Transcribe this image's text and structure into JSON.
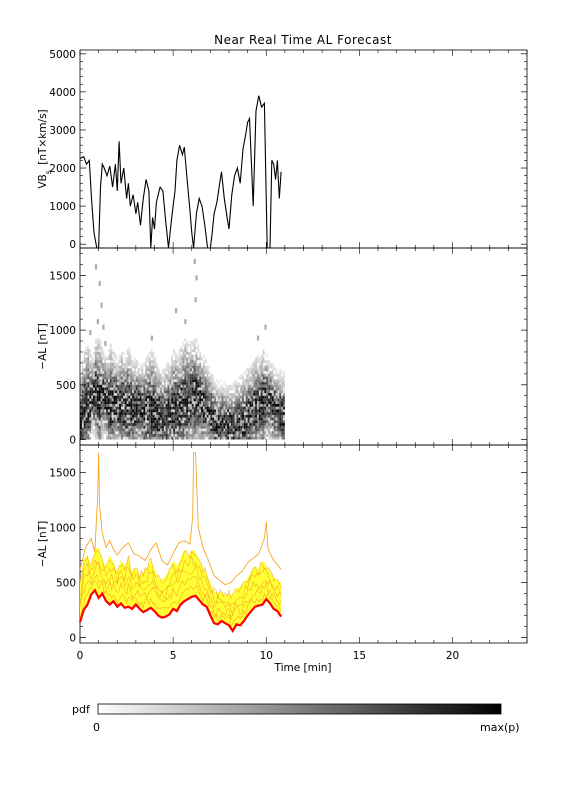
{
  "title": "Near Real Time AL Forecast",
  "colorbar": {
    "label": "pdf",
    "min_label": "0",
    "max_label": "max(p)",
    "colors": [
      "#ffffff",
      "#000000"
    ]
  },
  "colors": {
    "vbs_line": "#000000",
    "median_line": "#ff0000",
    "band_fill": "#ffff33",
    "envelope_lines": "#f5a623",
    "pdf_cells": "#000000"
  },
  "chart_data": [
    {
      "type": "line",
      "panel": "vbs",
      "ylabel": "VB_s [nT×km/s]",
      "ylim": [
        -100,
        5100
      ],
      "xlim": [
        0,
        24
      ],
      "yticks": [
        0,
        1000,
        2000,
        3000,
        4000,
        5000
      ],
      "series": [
        {
          "x": [
            0,
            0.2,
            0.35,
            0.5,
            0.62,
            0.75,
            0.9,
            1.0,
            1.1,
            1.2,
            1.3,
            1.45,
            1.6,
            1.75,
            1.9,
            2.0,
            2.1,
            2.2,
            2.35,
            2.5,
            2.6,
            2.7,
            2.85,
            3.0,
            3.1,
            3.25,
            3.4,
            3.55,
            3.7,
            3.8,
            3.9,
            4.0,
            4.1,
            4.2,
            4.3,
            4.45,
            4.6,
            4.75,
            4.9,
            5.0,
            5.1,
            5.2,
            5.35,
            5.5,
            5.6,
            5.75,
            5.9,
            6.0,
            6.1,
            6.25,
            6.4,
            6.55,
            6.7,
            6.85,
            7.0,
            7.1,
            7.2,
            7.35,
            7.5,
            7.6,
            7.75,
            7.9,
            8.0,
            8.15,
            8.3,
            8.45,
            8.6,
            8.75,
            8.9,
            9.0,
            9.1,
            9.2,
            9.3,
            9.45,
            9.6,
            9.75,
            9.9,
            10.05,
            10.2,
            10.3,
            10.4,
            10.5,
            10.6,
            10.7,
            10.8
          ],
          "values": [
            2250,
            2300,
            2100,
            2200,
            1200,
            300,
            -100,
            -100,
            1500,
            2100,
            2000,
            1800,
            2050,
            1500,
            2100,
            1400,
            2700,
            1600,
            2000,
            1200,
            1600,
            1000,
            1300,
            800,
            1100,
            500,
            1200,
            1700,
            1400,
            -100,
            700,
            400,
            1100,
            1300,
            1500,
            1400,
            600,
            -100,
            600,
            1000,
            1400,
            2200,
            2600,
            2350,
            2550,
            1700,
            900,
            300,
            -100,
            800,
            1200,
            1000,
            500,
            -100,
            -100,
            300,
            800,
            1100,
            1600,
            1900,
            1200,
            700,
            400,
            1300,
            1800,
            2000,
            1600,
            2500,
            2900,
            3200,
            3300,
            2200,
            1000,
            3500,
            3900,
            3600,
            3700,
            -100,
            -100,
            2200,
            2100,
            1700,
            2200,
            1200,
            1900
          ]
        }
      ]
    },
    {
      "type": "heatmap",
      "panel": "pdf",
      "ylabel": "−AL [nT]",
      "ylim": [
        -50,
        1750
      ],
      "xlim": [
        0,
        24
      ],
      "yticks": [
        0,
        500,
        1000,
        1500
      ],
      "data_extent_x": [
        0,
        10.9
      ],
      "outliers": [
        {
          "x": 0.8,
          "y": 1600
        },
        {
          "x": 1.0,
          "y": 1450
        },
        {
          "x": 1.1,
          "y": 1250
        },
        {
          "x": 1.2,
          "y": 1050
        },
        {
          "x": 0.9,
          "y": 1100
        },
        {
          "x": 1.3,
          "y": 900
        },
        {
          "x": 6.1,
          "y": 1650
        },
        {
          "x": 6.2,
          "y": 1500
        },
        {
          "x": 6.15,
          "y": 1300
        },
        {
          "x": 5.1,
          "y": 1200
        },
        {
          "x": 5.6,
          "y": 1100
        },
        {
          "x": 9.9,
          "y": 1050
        },
        {
          "x": 0.5,
          "y": 1000
        },
        {
          "x": 3.8,
          "y": 950
        },
        {
          "x": 9.5,
          "y": 950
        }
      ]
    },
    {
      "type": "line",
      "panel": "forecast",
      "ylabel": "−AL [nT]",
      "xlabel": "Time [min]",
      "ylim": [
        -50,
        1750
      ],
      "xlim": [
        0,
        24
      ],
      "yticks": [
        0,
        500,
        1000,
        1500
      ],
      "xticks": [
        0,
        5,
        10,
        15,
        20
      ],
      "series": [
        {
          "role": "median",
          "x": [
            0,
            0.2,
            0.4,
            0.6,
            0.8,
            1.0,
            1.2,
            1.4,
            1.6,
            1.8,
            2.0,
            2.2,
            2.4,
            2.6,
            2.8,
            3.0,
            3.2,
            3.4,
            3.6,
            3.8,
            4.0,
            4.2,
            4.4,
            4.6,
            4.8,
            5.0,
            5.2,
            5.4,
            5.6,
            5.8,
            6.0,
            6.2,
            6.4,
            6.6,
            6.8,
            7.0,
            7.2,
            7.4,
            7.6,
            7.8,
            8.0,
            8.2,
            8.4,
            8.6,
            8.8,
            9.0,
            9.2,
            9.4,
            9.6,
            9.8,
            10.0,
            10.2,
            10.4,
            10.6,
            10.8
          ],
          "values": [
            140,
            250,
            300,
            390,
            430,
            360,
            400,
            330,
            300,
            330,
            280,
            310,
            270,
            280,
            260,
            300,
            260,
            230,
            250,
            270,
            240,
            200,
            180,
            190,
            210,
            260,
            240,
            300,
            330,
            350,
            370,
            380,
            340,
            300,
            280,
            200,
            130,
            120,
            150,
            130,
            110,
            60,
            120,
            110,
            150,
            200,
            240,
            280,
            290,
            300,
            350,
            310,
            260,
            240,
            190
          ]
        },
        {
          "role": "upper-band",
          "x": [
            0,
            0.2,
            0.4,
            0.6,
            0.8,
            1.0,
            1.2,
            1.4,
            1.6,
            1.8,
            2.0,
            2.2,
            2.4,
            2.6,
            2.8,
            3.0,
            3.2,
            3.4,
            3.6,
            3.8,
            4.0,
            4.2,
            4.4,
            4.6,
            4.8,
            5.0,
            5.2,
            5.4,
            5.6,
            5.8,
            6.0,
            6.2,
            6.4,
            6.6,
            6.8,
            7.0,
            7.2,
            7.4,
            7.6,
            7.8,
            8.0,
            8.2,
            8.4,
            8.6,
            8.8,
            9.0,
            9.2,
            9.4,
            9.6,
            9.8,
            10.0,
            10.2,
            10.4,
            10.6,
            10.8
          ],
          "values": [
            500,
            700,
            750,
            650,
            800,
            820,
            700,
            650,
            750,
            680,
            600,
            700,
            650,
            720,
            600,
            640,
            560,
            600,
            640,
            700,
            620,
            550,
            520,
            560,
            600,
            700,
            650,
            720,
            800,
            740,
            800,
            780,
            700,
            640,
            580,
            500,
            420,
            400,
            420,
            380,
            400,
            380,
            450,
            460,
            500,
            540,
            600,
            650,
            620,
            700,
            650,
            600,
            550,
            520,
            500
          ]
        },
        {
          "role": "upper-envelope",
          "x": [
            0,
            0.3,
            0.6,
            0.8,
            0.95,
            1.0,
            1.05,
            1.2,
            1.4,
            1.6,
            1.8,
            2.0,
            2.3,
            2.6,
            2.9,
            3.2,
            3.5,
            3.8,
            4.1,
            4.4,
            4.7,
            5.0,
            5.3,
            5.6,
            5.9,
            6.05,
            6.1,
            6.2,
            6.35,
            6.6,
            6.9,
            7.2,
            7.5,
            7.8,
            8.1,
            8.4,
            8.7,
            9.0,
            9.3,
            9.6,
            9.9,
            10.0,
            10.1,
            10.4,
            10.7,
            10.8
          ],
          "values": [
            620,
            820,
            900,
            780,
            1300,
            1680,
            1200,
            950,
            820,
            880,
            800,
            750,
            820,
            860,
            760,
            740,
            700,
            800,
            860,
            700,
            660,
            760,
            860,
            880,
            850,
            1100,
            1680,
            1680,
            1000,
            820,
            700,
            560,
            520,
            480,
            500,
            560,
            600,
            680,
            720,
            760,
            900,
            1050,
            800,
            700,
            640,
            620
          ]
        }
      ]
    }
  ]
}
